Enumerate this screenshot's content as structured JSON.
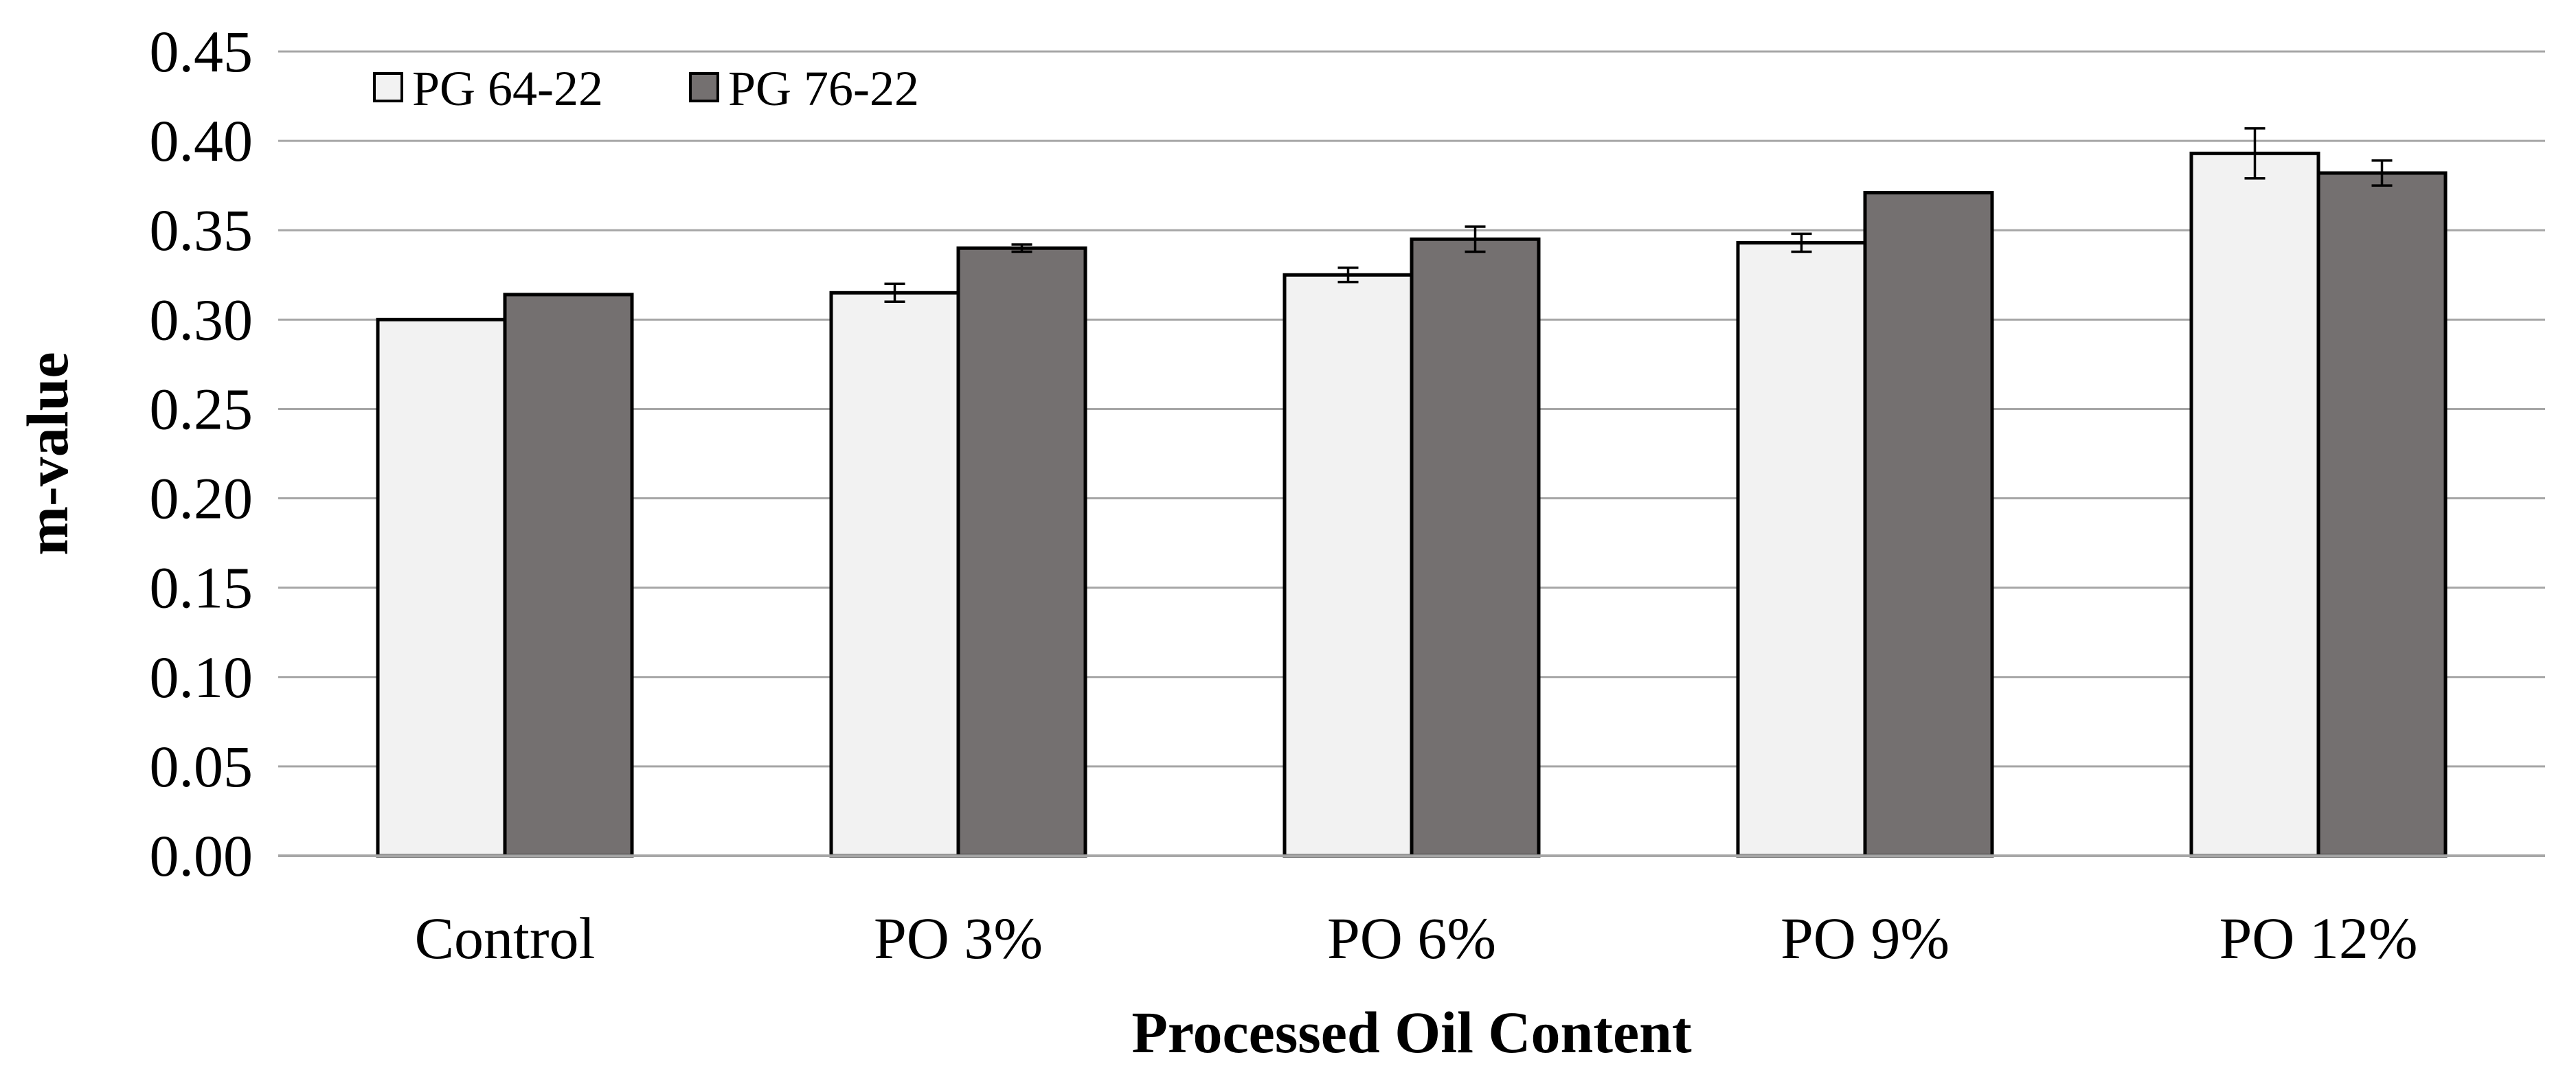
{
  "chart_data": {
    "type": "bar",
    "xlabel": "Processed Oil Content",
    "ylabel": "m-value",
    "ylim": [
      0,
      0.45
    ],
    "ytick_step": 0.05,
    "grid": true,
    "legend_position": "top-left",
    "categories": [
      "Control",
      "PO 3%",
      "PO 6%",
      "PO 9%",
      "PO 12%"
    ],
    "series": [
      {
        "name": "PG 64-22",
        "color": "#f2f2f2",
        "values": [
          0.3,
          0.315,
          0.325,
          0.343,
          0.393
        ],
        "errors": [
          0,
          0.005,
          0.004,
          0.005,
          0.014
        ]
      },
      {
        "name": "PG 76-22",
        "color": "#747070",
        "values": [
          0.314,
          0.34,
          0.345,
          0.371,
          0.382
        ],
        "errors": [
          0,
          0.002,
          0.007,
          0,
          0.007
        ]
      }
    ]
  }
}
